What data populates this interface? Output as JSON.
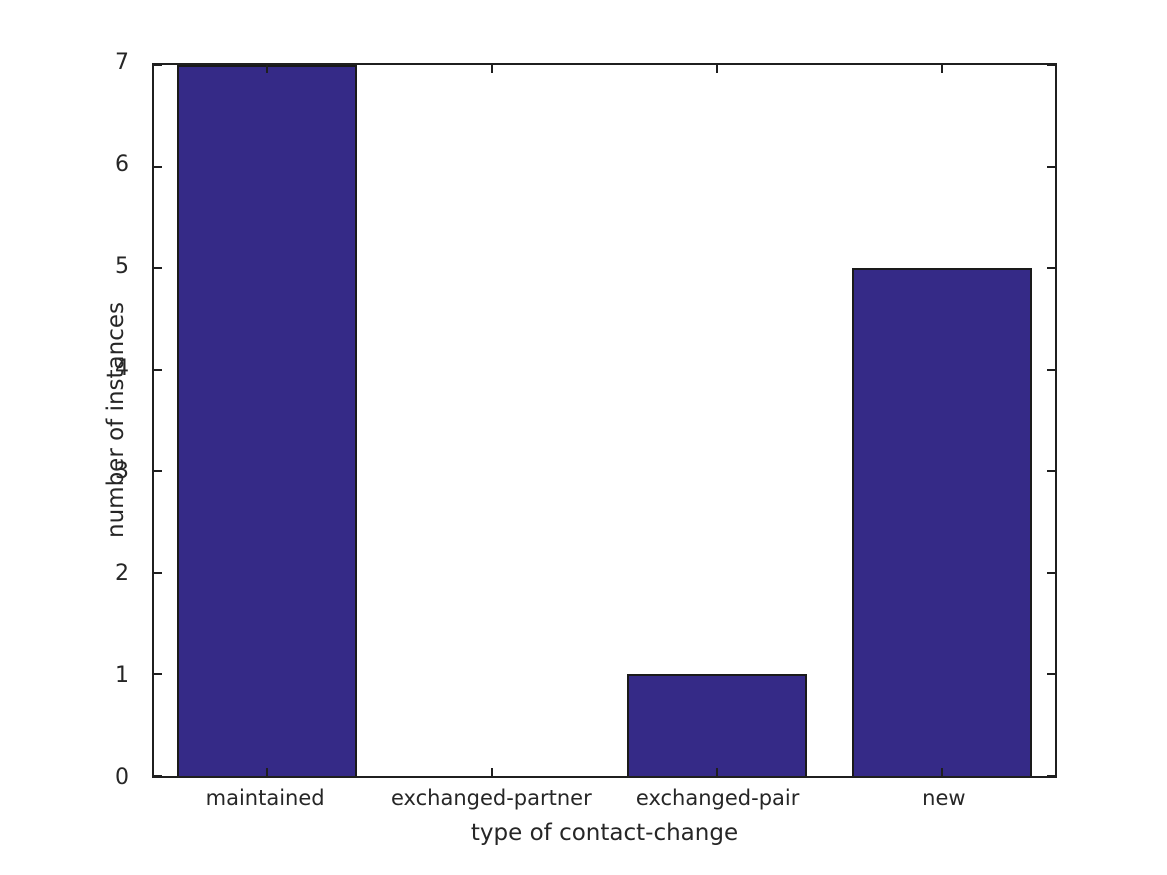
{
  "chart_data": {
    "type": "bar",
    "categories": [
      "maintained",
      "exchanged-partner",
      "exchanged-pair",
      "new"
    ],
    "values": [
      7,
      0,
      1,
      5
    ],
    "title": "",
    "xlabel": "type of contact-change",
    "ylabel": "number of instances",
    "ylim": [
      0,
      7
    ],
    "yticks": [
      0,
      1,
      2,
      3,
      4,
      5,
      6,
      7
    ],
    "bar_width_fraction": 0.8,
    "grid": false,
    "legend": "none",
    "tick_direction": "in",
    "colors": {
      "bar_fill": "#352a87",
      "bar_edge": "#1a1a1a",
      "axis_frame": "#1f1f1f",
      "tick_text": "#262626",
      "background": "#ffffff"
    }
  }
}
